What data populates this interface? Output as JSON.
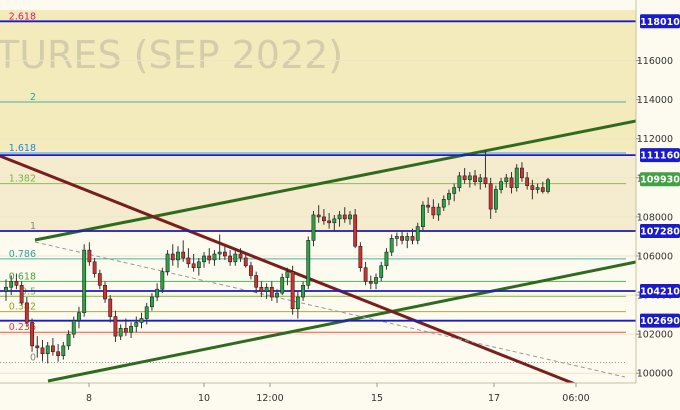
{
  "chart_data": {
    "type": "candlestick",
    "watermark": "TURES (SEP 2022)",
    "ylim": [
      99500,
      119100
    ],
    "y_ticks": [
      100000,
      102000,
      104000,
      106000,
      108000,
      110000,
      112000,
      114000,
      116000
    ],
    "x_ticks": [
      "8",
      "10",
      "12:00",
      "15",
      "17",
      "06:00"
    ],
    "price_lines": [
      {
        "value": 118010,
        "label": "118010",
        "color": "#1b1bc8"
      },
      {
        "value": 111160,
        "label": "111160",
        "color": "#1b1bc8"
      },
      {
        "value": 109930,
        "label": "109930",
        "color": "#43a047"
      },
      {
        "value": 107280,
        "label": "107280",
        "color": "#1b1bc8"
      },
      {
        "value": 104210,
        "label": "104210",
        "color": "#1b1bc8"
      },
      {
        "value": 102690,
        "label": "102690",
        "color": "#1b1bc8"
      }
    ],
    "fib_levels": [
      {
        "label": "2.618",
        "value": 118010,
        "color": "#d81b60"
      },
      {
        "label": "2",
        "value": 113880,
        "color": "#26a69a"
      },
      {
        "label": "1.618",
        "value": 111270,
        "color": "#1e88e5"
      },
      {
        "label": "1.382",
        "value": 109700,
        "color": "#7cb342"
      },
      {
        "label": "1",
        "value": 107280,
        "color": "#888888"
      },
      {
        "label": "0.786",
        "value": 105850,
        "color": "#26a69a"
      },
      {
        "label": "0.618",
        "value": 104700,
        "color": "#43a047"
      },
      {
        "label": "0.5",
        "value": 103930,
        "color": "#7cb342"
      },
      {
        "label": "0.382",
        "value": 103150,
        "color": "#9e9d24"
      },
      {
        "label": "0.236",
        "value": 102100,
        "color": "#e53935"
      },
      {
        "label": "0",
        "value": 100550,
        "color": "#888888"
      }
    ],
    "candles": [
      [
        104200,
        104800,
        103700,
        104400
      ],
      [
        104400,
        105000,
        104000,
        104700
      ],
      [
        104700,
        105100,
        104300,
        104500
      ],
      [
        104500,
        104700,
        103500,
        103600
      ],
      [
        103600,
        103900,
        102400,
        102600
      ],
      [
        102600,
        102800,
        101100,
        101400
      ],
      [
        101400,
        101900,
        100800,
        101300
      ],
      [
        101300,
        101700,
        100600,
        101000
      ],
      [
        101000,
        101600,
        100500,
        101400
      ],
      [
        101400,
        101800,
        100900,
        101100
      ],
      [
        101100,
        101500,
        100600,
        100900
      ],
      [
        100900,
        101600,
        100700,
        101400
      ],
      [
        101400,
        102200,
        101200,
        102000
      ],
      [
        102000,
        102900,
        101800,
        102700
      ],
      [
        102700,
        103400,
        102300,
        103100
      ],
      [
        103100,
        106600,
        102900,
        106300
      ],
      [
        106300,
        106700,
        105500,
        105700
      ],
      [
        105700,
        105900,
        104900,
        105100
      ],
      [
        105100,
        105300,
        104300,
        104500
      ],
      [
        104500,
        104700,
        103600,
        103800
      ],
      [
        103800,
        104000,
        102600,
        102900
      ],
      [
        102900,
        103200,
        101600,
        101900
      ],
      [
        101900,
        102500,
        101700,
        102300
      ],
      [
        102300,
        102800,
        101900,
        102100
      ],
      [
        102100,
        102600,
        101800,
        102400
      ],
      [
        102400,
        102900,
        102100,
        102600
      ],
      [
        102600,
        103100,
        102300,
        102800
      ],
      [
        102800,
        103600,
        102500,
        103400
      ],
      [
        103400,
        104100,
        103200,
        103900
      ],
      [
        103900,
        104600,
        103700,
        104300
      ],
      [
        104300,
        105400,
        104100,
        105200
      ],
      [
        105200,
        106300,
        105000,
        106100
      ],
      [
        106100,
        106600,
        105500,
        105800
      ],
      [
        105800,
        106500,
        105400,
        106200
      ],
      [
        106200,
        106800,
        105700,
        105900
      ],
      [
        105900,
        106400,
        105400,
        105600
      ],
      [
        105600,
        106100,
        105200,
        105400
      ],
      [
        105400,
        105900,
        105000,
        105700
      ],
      [
        105700,
        106200,
        105400,
        106000
      ],
      [
        106000,
        106400,
        105600,
        105800
      ],
      [
        105800,
        106300,
        105500,
        106100
      ],
      [
        106100,
        107100,
        105800,
        106200
      ],
      [
        106200,
        106500,
        105800,
        106000
      ],
      [
        106000,
        106300,
        105500,
        105700
      ],
      [
        105700,
        106400,
        105500,
        106100
      ],
      [
        106100,
        106400,
        105700,
        105900
      ],
      [
        105900,
        106100,
        105400,
        105500
      ],
      [
        105500,
        105700,
        104800,
        105000
      ],
      [
        105000,
        105200,
        104100,
        104400
      ],
      [
        104400,
        104700,
        103900,
        104200
      ],
      [
        104200,
        104600,
        103800,
        104400
      ],
      [
        104400,
        104700,
        103700,
        103900
      ],
      [
        103900,
        104300,
        103600,
        104100
      ],
      [
        104100,
        105100,
        104000,
        104900
      ],
      [
        104900,
        105400,
        104500,
        105200
      ],
      [
        105200,
        105500,
        103000,
        103300
      ],
      [
        103300,
        104200,
        102800,
        103900
      ],
      [
        103900,
        104700,
        103700,
        104500
      ],
      [
        104500,
        107000,
        104300,
        106800
      ],
      [
        106800,
        108300,
        106500,
        108100
      ],
      [
        108100,
        108600,
        107700,
        108000
      ],
      [
        108000,
        108400,
        107600,
        107800
      ],
      [
        107800,
        108200,
        107400,
        107700
      ],
      [
        107700,
        108100,
        107300,
        107900
      ],
      [
        107900,
        108300,
        107500,
        108100
      ],
      [
        108100,
        108500,
        107700,
        107900
      ],
      [
        107900,
        108300,
        107600,
        108100
      ],
      [
        108100,
        108400,
        106400,
        106500
      ],
      [
        106500,
        106700,
        105200,
        105400
      ],
      [
        105400,
        105700,
        104500,
        104700
      ],
      [
        104700,
        105000,
        104300,
        104600
      ],
      [
        104600,
        105100,
        104300,
        104900
      ],
      [
        104900,
        105700,
        104700,
        105500
      ],
      [
        105500,
        106400,
        105300,
        106200
      ],
      [
        106200,
        107100,
        106000,
        106900
      ],
      [
        106900,
        107200,
        106500,
        107000
      ],
      [
        107000,
        107300,
        106600,
        106800
      ],
      [
        106800,
        107200,
        106400,
        107000
      ],
      [
        107000,
        107400,
        106600,
        106800
      ],
      [
        106800,
        107700,
        106600,
        107500
      ],
      [
        107500,
        108800,
        107300,
        108600
      ],
      [
        108600,
        109000,
        108200,
        108500
      ],
      [
        108500,
        108900,
        107900,
        108100
      ],
      [
        108100,
        108700,
        107800,
        108500
      ],
      [
        108500,
        109100,
        108300,
        108900
      ],
      [
        108900,
        109400,
        108600,
        109200
      ],
      [
        109200,
        109700,
        108800,
        109500
      ],
      [
        109500,
        110300,
        109300,
        110100
      ],
      [
        110100,
        110500,
        109700,
        109900
      ],
      [
        109900,
        110300,
        109500,
        110100
      ],
      [
        110100,
        110400,
        109600,
        109800
      ],
      [
        109800,
        110200,
        109400,
        110000
      ],
      [
        110000,
        111400,
        109500,
        109700
      ],
      [
        109700,
        110000,
        107900,
        108400
      ],
      [
        108400,
        109600,
        108200,
        109400
      ],
      [
        109400,
        110000,
        109200,
        109800
      ],
      [
        109800,
        110200,
        109500,
        110000
      ],
      [
        110000,
        110300,
        109200,
        109500
      ],
      [
        109500,
        110700,
        109300,
        110500
      ],
      [
        110500,
        110800,
        109800,
        110000
      ],
      [
        110000,
        110300,
        109400,
        109600
      ],
      [
        109600,
        109900,
        108900,
        109400
      ],
      [
        109400,
        109700,
        109200,
        109500
      ],
      [
        109500,
        109800,
        109200,
        109300
      ],
      [
        109300,
        110000,
        109200,
        109900
      ]
    ]
  }
}
